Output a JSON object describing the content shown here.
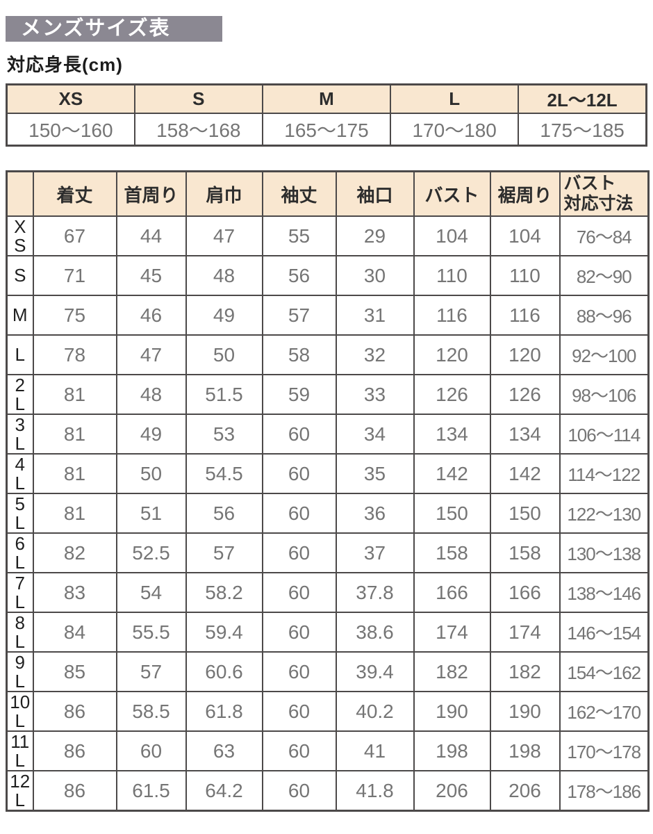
{
  "page": {
    "title": "メンズサイズ表",
    "subtitle": "対応身長(cm)"
  },
  "height_table": {
    "columns": [
      "XS",
      "S",
      "M",
      "L",
      "2L〜12L"
    ],
    "values": [
      "150〜160",
      "158〜168",
      "165〜175",
      "170〜180",
      "175〜185"
    ]
  },
  "size_table": {
    "corner_label": "",
    "columns": [
      "着丈",
      "首周り",
      "肩巾",
      "袖丈",
      "袖口",
      "バスト",
      "裾周り",
      "バスト\n対応寸法"
    ],
    "rows": [
      {
        "size": "X\nS",
        "values": [
          "67",
          "44",
          "47",
          "55",
          "29",
          "104",
          "104",
          "76〜84"
        ]
      },
      {
        "size": "S",
        "values": [
          "71",
          "45",
          "48",
          "56",
          "30",
          "110",
          "110",
          "82〜90"
        ]
      },
      {
        "size": "M",
        "values": [
          "75",
          "46",
          "49",
          "57",
          "31",
          "116",
          "116",
          "88〜96"
        ]
      },
      {
        "size": "L",
        "values": [
          "78",
          "47",
          "50",
          "58",
          "32",
          "120",
          "120",
          "92〜100"
        ]
      },
      {
        "size": "2\nL",
        "values": [
          "81",
          "48",
          "51.5",
          "59",
          "33",
          "126",
          "126",
          "98〜106"
        ]
      },
      {
        "size": "3\nL",
        "values": [
          "81",
          "49",
          "53",
          "60",
          "34",
          "134",
          "134",
          "106〜114"
        ]
      },
      {
        "size": "4\nL",
        "values": [
          "81",
          "50",
          "54.5",
          "60",
          "35",
          "142",
          "142",
          "114〜122"
        ]
      },
      {
        "size": "5\nL",
        "values": [
          "81",
          "51",
          "56",
          "60",
          "36",
          "150",
          "150",
          "122〜130"
        ]
      },
      {
        "size": "6\nL",
        "values": [
          "82",
          "52.5",
          "57",
          "60",
          "37",
          "158",
          "158",
          "130〜138"
        ]
      },
      {
        "size": "7\nL",
        "values": [
          "83",
          "54",
          "58.2",
          "60",
          "37.8",
          "166",
          "166",
          "138〜146"
        ]
      },
      {
        "size": "8\nL",
        "values": [
          "84",
          "55.5",
          "59.4",
          "60",
          "38.6",
          "174",
          "174",
          "146〜154"
        ]
      },
      {
        "size": "9\nL",
        "values": [
          "85",
          "57",
          "60.6",
          "60",
          "39.4",
          "182",
          "182",
          "154〜162"
        ]
      },
      {
        "size": "10\nL",
        "values": [
          "86",
          "58.5",
          "61.8",
          "60",
          "40.2",
          "190",
          "190",
          "162〜170"
        ]
      },
      {
        "size": "11\nL",
        "values": [
          "86",
          "60",
          "63",
          "60",
          "41",
          "198",
          "198",
          "170〜178"
        ]
      },
      {
        "size": "12\nL",
        "values": [
          "86",
          "61.5",
          "64.2",
          "60",
          "41.8",
          "206",
          "206",
          "178〜186"
        ]
      }
    ]
  },
  "colors": {
    "title_bar_bg": "#8b8892",
    "title_text": "#ffffff",
    "header_bg": "#f9e7d0",
    "border": "#4c4949",
    "value_text": "#757575",
    "label_text": "#1f1f1f"
  }
}
